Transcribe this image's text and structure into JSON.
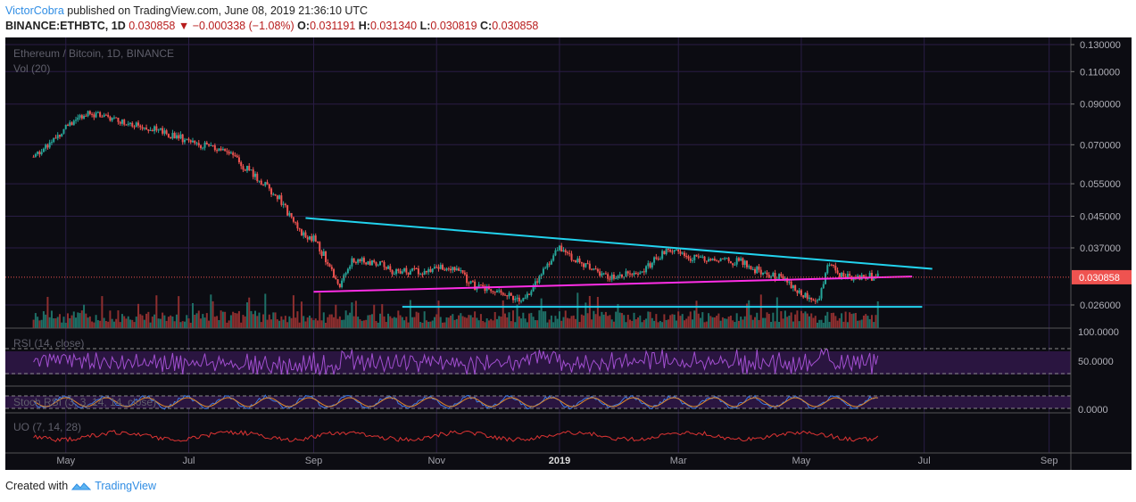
{
  "header": {
    "author": "VictorCobra",
    "published": "published on TradingView.com, June 08, 2019 21:36:10 UTC",
    "symbol": "BINANCE:ETHBTC, 1D",
    "last": "0.030858",
    "arrow": "▼",
    "change": "−0.000338 (−1.08%)",
    "o_label": "O:",
    "o_value": "0.031191",
    "h_label": "H:",
    "h_value": "0.031340",
    "l_label": "L:",
    "l_value": "0.030819",
    "c_label": "C:",
    "c_value": "0.030858"
  },
  "chart_data": {
    "type": "candlestick",
    "title": "Ethereum / Bitcoin, 1D, BINANCE",
    "volume_label": "Vol (20)",
    "y_scale": "log",
    "y_ticks": [
      "0.130000",
      "0.110000",
      "0.090000",
      "0.070000",
      "0.055000",
      "0.045000",
      "0.037000",
      "0.030858",
      "0.026000"
    ],
    "current_price": "0.030858",
    "x_ticks": [
      "May",
      "Jul",
      "Sep",
      "Nov",
      "2019",
      "Mar",
      "May",
      "Jul",
      "Sep"
    ],
    "price_path": {
      "dates": [
        "2018-04-15",
        "2018-05-01",
        "2018-05-10",
        "2018-05-20",
        "2018-06-10",
        "2018-06-30",
        "2018-07-20",
        "2018-08-01",
        "2018-08-15",
        "2018-08-25",
        "2018-09-01",
        "2018-09-08",
        "2018-09-13",
        "2018-09-20",
        "2018-10-01",
        "2018-10-10",
        "2018-10-25",
        "2018-11-10",
        "2018-11-20",
        "2018-12-01",
        "2018-12-15",
        "2018-12-25",
        "2019-01-01",
        "2019-01-10",
        "2019-01-25",
        "2019-02-10",
        "2019-02-25",
        "2019-03-05",
        "2019-03-20",
        "2019-04-01",
        "2019-04-10",
        "2019-04-20",
        "2019-05-01",
        "2019-05-10",
        "2019-05-15",
        "2019-05-20",
        "2019-05-25",
        "2019-06-01",
        "2019-06-08"
      ],
      "close": [
        0.065,
        0.078,
        0.085,
        0.084,
        0.078,
        0.072,
        0.067,
        0.059,
        0.05,
        0.041,
        0.039,
        0.034,
        0.029,
        0.034,
        0.034,
        0.032,
        0.032,
        0.033,
        0.029,
        0.028,
        0.027,
        0.033,
        0.037,
        0.034,
        0.031,
        0.032,
        0.037,
        0.035,
        0.034,
        0.034,
        0.032,
        0.031,
        0.028,
        0.027,
        0.034,
        0.031,
        0.031,
        0.031,
        0.0309
      ]
    },
    "annotations": [
      {
        "label": "descending-resistance",
        "color": "#22d3ee",
        "from": [
          "2018-08-28",
          0.0445
        ],
        "to": [
          "2019-07-05",
          0.0325
        ]
      },
      {
        "label": "ascending-support",
        "color": "#ff2ee6",
        "from": [
          "2018-09-01",
          0.0282
        ],
        "to": [
          "2019-06-25",
          0.031
        ]
      },
      {
        "label": "horizontal-support",
        "color": "#22d3ee",
        "from": [
          "2018-10-15",
          0.0257
        ],
        "to": [
          "2019-06-30",
          0.0257
        ]
      }
    ],
    "rsi": {
      "label": "RSI (14, close)",
      "ticks": [
        "100.0000",
        "50.0000"
      ],
      "bands": [
        70,
        30
      ]
    },
    "stoch": {
      "label": "Stoch RSI (3, 3, 14, 14, close)",
      "ticks": [
        "0.0000"
      ]
    },
    "uo": {
      "label": "UO (7, 14, 28)"
    }
  },
  "footer": {
    "created_with": "Created with",
    "brand": "TradingView"
  }
}
